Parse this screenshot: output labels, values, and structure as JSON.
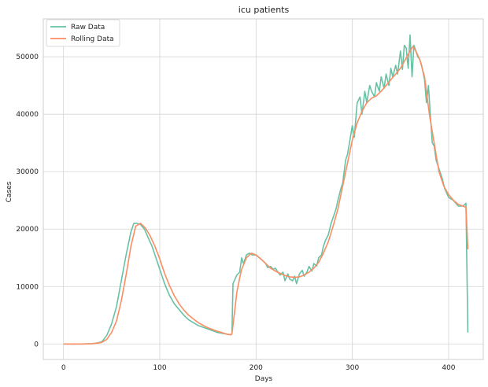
{
  "chart_data": {
    "type": "line",
    "title": "icu patients",
    "xlabel": "Days",
    "ylabel": "Cases",
    "xlim": [
      -21,
      436
    ],
    "ylim": [
      -2700,
      56600
    ],
    "xticks": [
      0,
      100,
      200,
      300,
      400
    ],
    "yticks": [
      0,
      10000,
      20000,
      30000,
      40000,
      50000
    ],
    "grid": true,
    "legend_position": "upper-left",
    "series": [
      {
        "name": "Raw Data",
        "color": "#66c2a5",
        "x": [
          0,
          10,
          20,
          30,
          36,
          40,
          45,
          50,
          55,
          60,
          65,
          70,
          73,
          76,
          80,
          84,
          88,
          92,
          96,
          100,
          105,
          110,
          115,
          120,
          125,
          130,
          140,
          150,
          160,
          170,
          174,
          175,
          176,
          180,
          183,
          185,
          187,
          190,
          193,
          196,
          200,
          205,
          210,
          212,
          215,
          218,
          220,
          222,
          225,
          228,
          230,
          233,
          235,
          238,
          240,
          242,
          245,
          248,
          250,
          253,
          255,
          258,
          260,
          263,
          265,
          268,
          270,
          272,
          275,
          278,
          280,
          283,
          285,
          288,
          290,
          293,
          295,
          298,
          300,
          302,
          305,
          308,
          310,
          313,
          315,
          318,
          320,
          323,
          325,
          328,
          330,
          333,
          335,
          338,
          340,
          342,
          345,
          347,
          350,
          352,
          354,
          356,
          358,
          360,
          362,
          364,
          366,
          368,
          370,
          372,
          375,
          377,
          379,
          381,
          383,
          385,
          387,
          390,
          393,
          396,
          400,
          405,
          410,
          415,
          418,
          420
        ],
        "y": [
          0,
          0,
          0,
          50,
          200,
          400,
          1500,
          3500,
          6500,
          11000,
          15500,
          19500,
          21000,
          21000,
          20800,
          20000,
          18500,
          17000,
          15000,
          13000,
          10500,
          8500,
          7000,
          6000,
          5000,
          4200,
          3200,
          2600,
          2000,
          1700,
          1600,
          1800,
          10500,
          12000,
          12500,
          15000,
          14000,
          15500,
          15800,
          15500,
          15500,
          14800,
          14000,
          13300,
          13500,
          13000,
          13200,
          12700,
          12000,
          12500,
          11000,
          12200,
          11300,
          11000,
          11800,
          10500,
          12200,
          12800,
          11800,
          12600,
          13500,
          12700,
          14000,
          13600,
          15000,
          15500,
          17000,
          18000,
          19000,
          21000,
          22000,
          23500,
          25000,
          27000,
          28000,
          32000,
          33000,
          36000,
          38000,
          36000,
          42000,
          43000,
          40000,
          44000,
          42000,
          45000,
          44000,
          43000,
          45500,
          44000,
          46500,
          44500,
          47000,
          45000,
          48000,
          46500,
          48500,
          47000,
          51000,
          47800,
          52000,
          51500,
          48000,
          53800,
          46500,
          52000,
          51000,
          50000,
          49500,
          48500,
          46000,
          42000,
          45000,
          40000,
          35000,
          34500,
          32000,
          30500,
          29000,
          27000,
          25500,
          25000,
          24000,
          24000,
          24500,
          2000
        ]
      },
      {
        "name": "Rolling Data",
        "color": "#fc8d62",
        "x": [
          0,
          10,
          20,
          30,
          36,
          40,
          45,
          50,
          55,
          60,
          65,
          70,
          75,
          80,
          85,
          90,
          95,
          100,
          105,
          110,
          115,
          120,
          125,
          130,
          140,
          150,
          160,
          170,
          174,
          175,
          178,
          180,
          183,
          185,
          190,
          195,
          200,
          205,
          210,
          215,
          220,
          225,
          230,
          235,
          240,
          245,
          250,
          255,
          260,
          265,
          270,
          275,
          280,
          285,
          290,
          295,
          300,
          305,
          310,
          315,
          320,
          325,
          330,
          335,
          340,
          345,
          350,
          355,
          360,
          363,
          366,
          370,
          375,
          380,
          385,
          390,
          395,
          400,
          405,
          410,
          415,
          418,
          420
        ],
        "y": [
          0,
          0,
          0,
          50,
          150,
          300,
          800,
          2000,
          4000,
          7500,
          12000,
          17000,
          20500,
          21000,
          20200,
          18800,
          17000,
          14800,
          12300,
          10200,
          8400,
          7000,
          5900,
          5000,
          3700,
          2800,
          2200,
          1700,
          1600,
          1800,
          6000,
          9000,
          11500,
          13000,
          15000,
          15800,
          15500,
          14800,
          14000,
          13200,
          12700,
          12300,
          11900,
          11700,
          11600,
          11700,
          12000,
          12500,
          13200,
          14200,
          15800,
          17800,
          20500,
          23500,
          27500,
          31500,
          35500,
          38500,
          40500,
          42000,
          42800,
          43200,
          44000,
          45000,
          46000,
          47000,
          48000,
          49500,
          51000,
          51800,
          51000,
          49500,
          46500,
          40000,
          35000,
          30000,
          27500,
          26000,
          25000,
          24300,
          24000,
          23800,
          16500
        ]
      }
    ]
  }
}
